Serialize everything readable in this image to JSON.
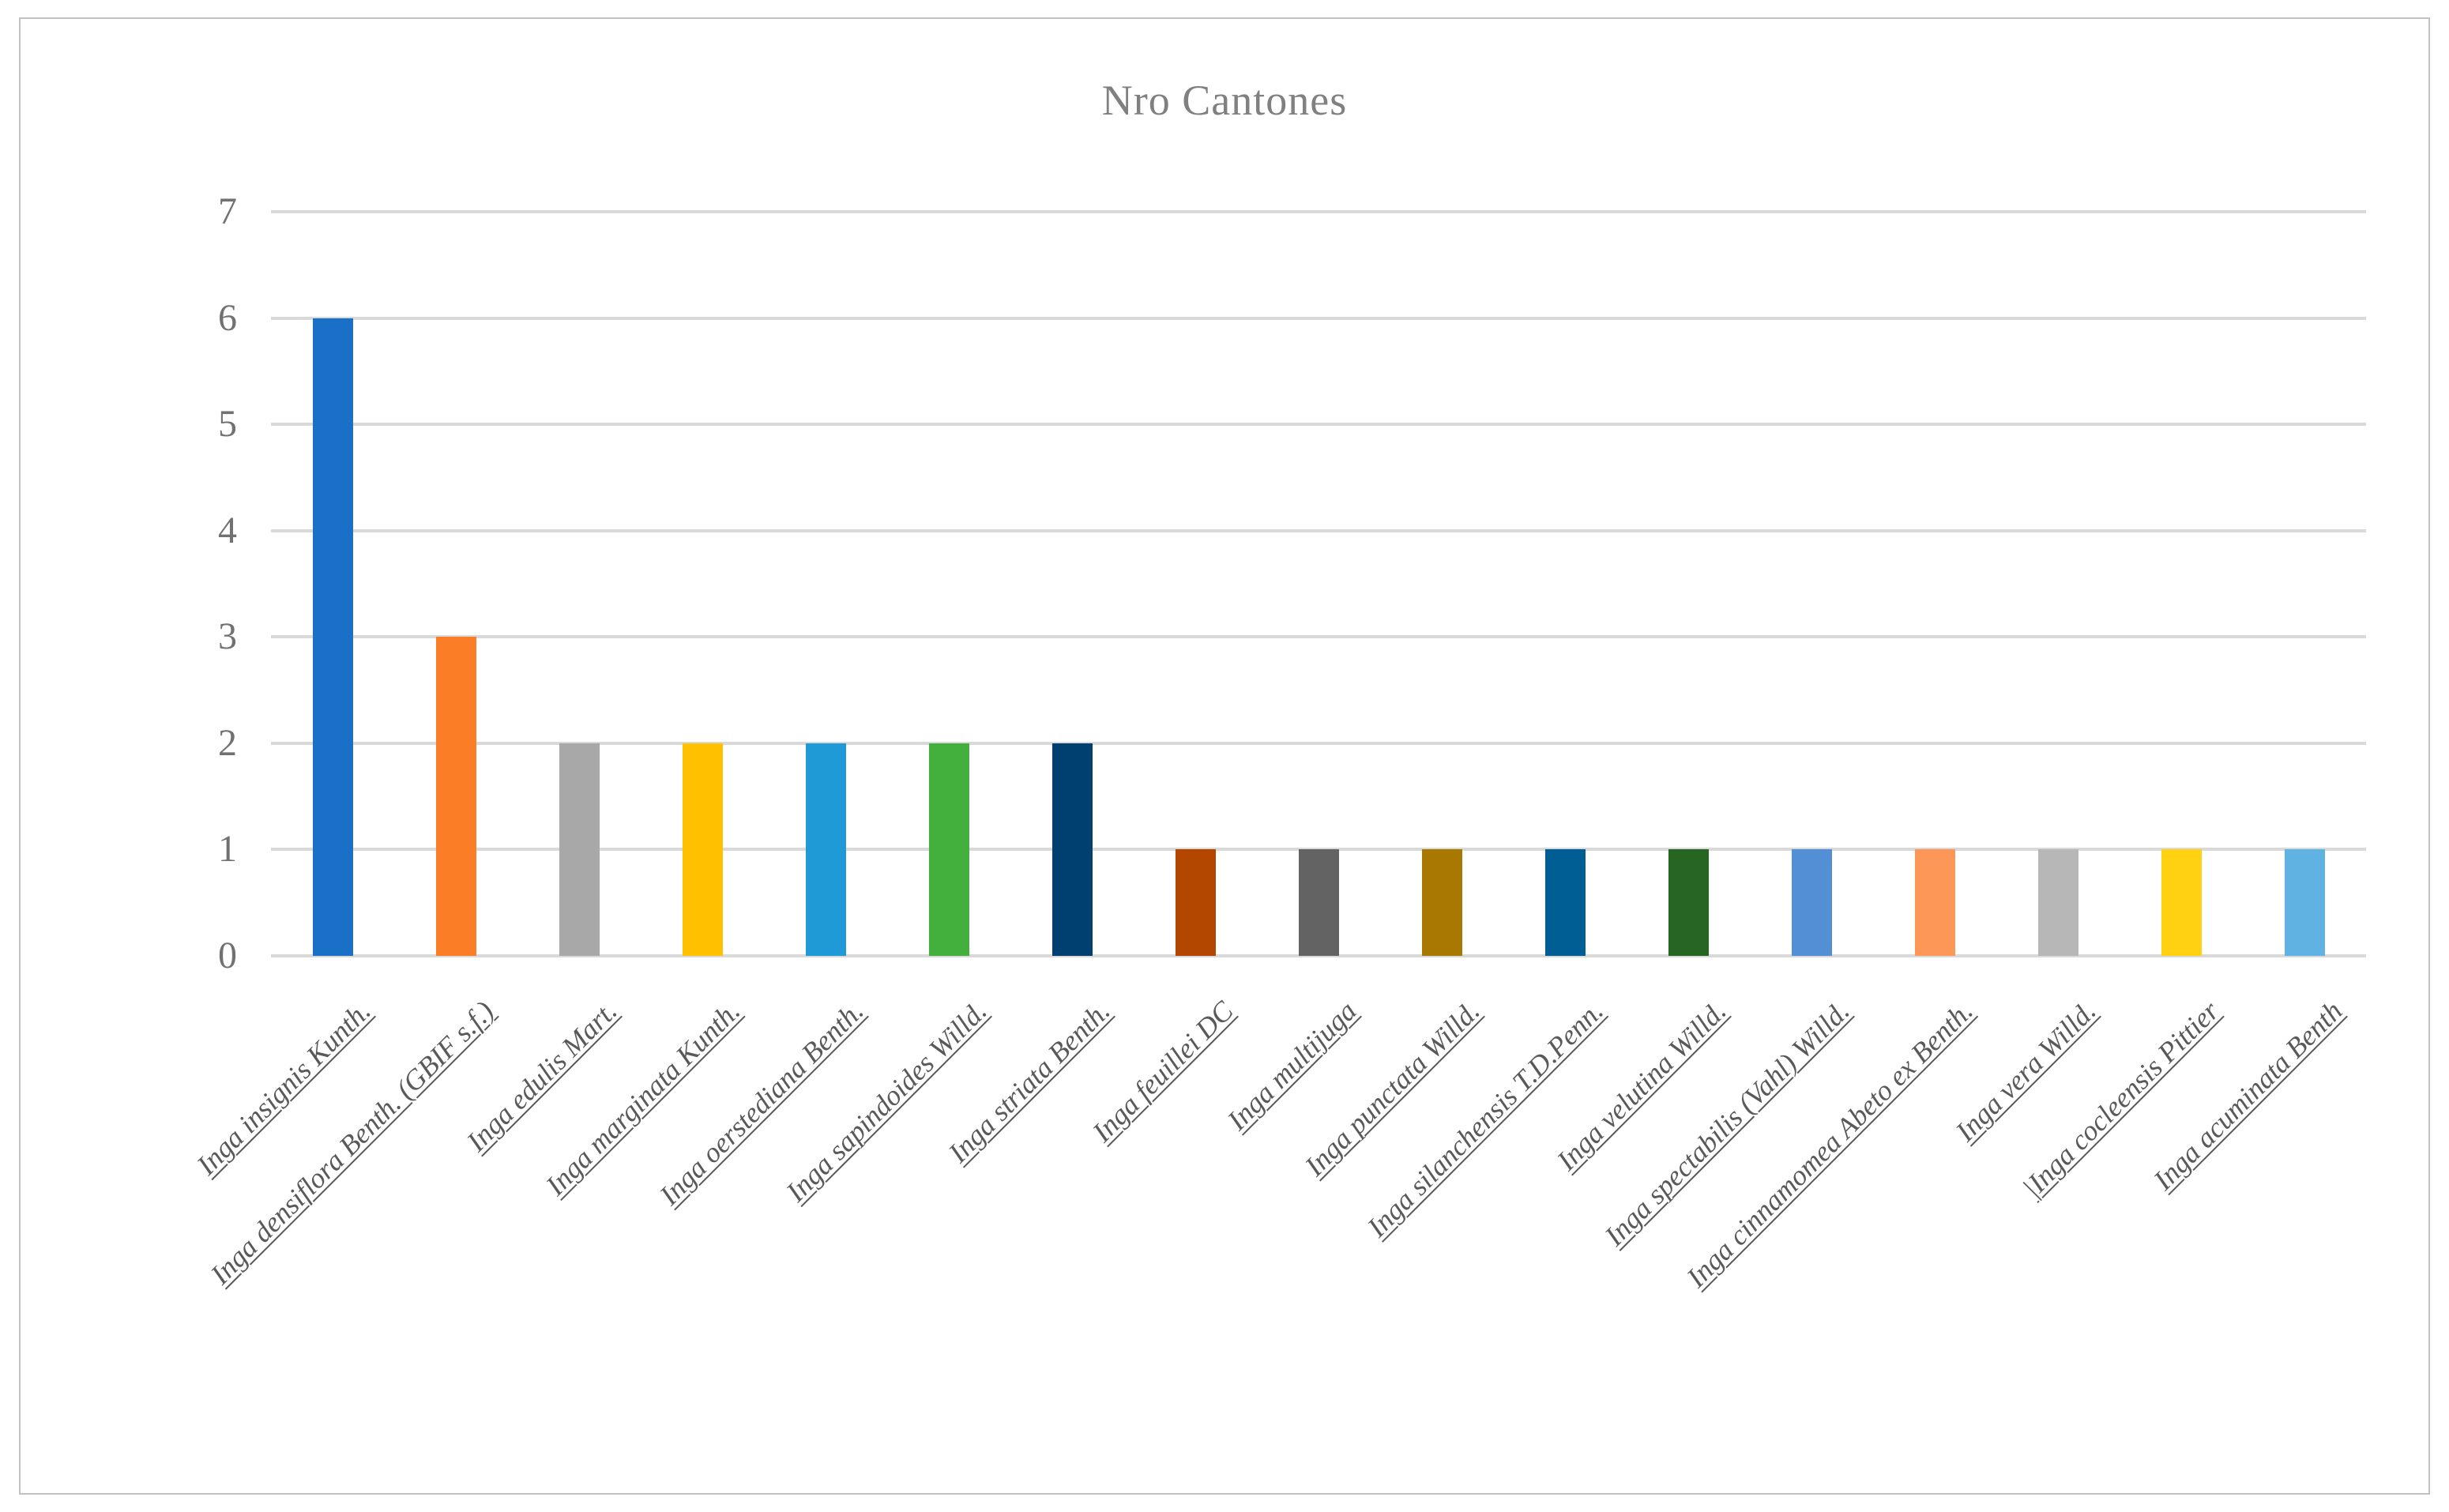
{
  "title": "Nro Cantones",
  "axis": {
    "y_min": 0,
    "y_max": 7,
    "y_ticks": [
      0,
      1,
      2,
      3,
      4,
      5,
      6,
      7
    ]
  },
  "styles": {
    "gridline_color": "#d9d9d9",
    "title_color": "#808080",
    "tick_color": "#717171",
    "label_color": "#595959",
    "frame_color": "#c2c2c2"
  },
  "chart_data": {
    "type": "bar",
    "title": "Nro Cantones",
    "xlabel": "",
    "ylabel": "",
    "ylim": [
      0,
      7
    ],
    "yticks": [
      0,
      1,
      2,
      3,
      4,
      5,
      6,
      7
    ],
    "grid": true,
    "legend": false,
    "categories": [
      "Inga insignis Kunth.",
      "Inga densiflora Benth. (GBIF s.f.)",
      "Inga edulis Mart.",
      "Inga marginata Kunth.",
      "Inga oerstediana Benth.",
      "Inga sapindoides Willd.",
      "Inga striata Benth.",
      "Inga feuillei DC",
      "Inga multijuga",
      "Inga punctata Willd.",
      "Inga silanchensis T.D.Penn.",
      "Inga velutina Willd.",
      "Inga spectabilis (Vahl) Willd.",
      "Inga cinnamomea Abeto ex Benth.",
      "Inga vera Willd.",
      "|Inga cocleensis Pittier",
      "Inga acuminata Benth"
    ],
    "values": [
      6,
      3,
      2,
      2,
      2,
      2,
      2,
      1,
      1,
      1,
      1,
      1,
      1,
      1,
      1,
      1,
      1
    ],
    "bar_colors": [
      "#1A70C7",
      "#FB7D25",
      "#A8A8A8",
      "#FFC000",
      "#1F9AD7",
      "#43AF3C",
      "#004071",
      "#B34700",
      "#636363",
      "#A87800",
      "#005E94",
      "#266522",
      "#538FD4",
      "#FD9757",
      "#B7B7B7",
      "#FFD110",
      "#5FB2E1"
    ]
  }
}
